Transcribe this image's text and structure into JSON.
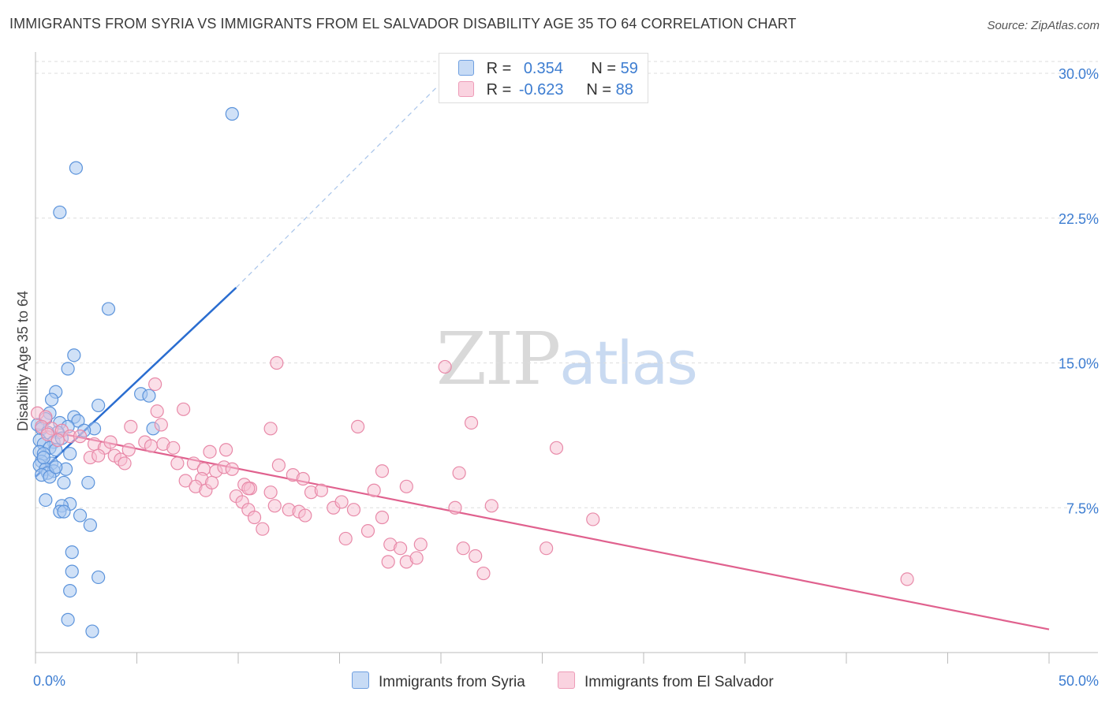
{
  "header": {
    "title": "IMMIGRANTS FROM SYRIA VS IMMIGRANTS FROM EL SALVADOR DISABILITY AGE 35 TO 64 CORRELATION CHART",
    "source": "Source: ZipAtlas.com"
  },
  "watermark": {
    "zip": "ZIP",
    "atlas": "atlas"
  },
  "legend": {
    "r_label": "R =",
    "n_label": "N =",
    "syria": {
      "r": "0.354",
      "n": "59"
    },
    "el_salvador": {
      "r": "-0.623",
      "n": "88"
    }
  },
  "bottom_legend": {
    "syria": "Immigrants from Syria",
    "el_salvador": "Immigrants from El Salvador"
  },
  "colors": {
    "syria_fill": "#a9c8f0",
    "syria_stroke": "#5b93db",
    "syria_line": "#2a6dd0",
    "el_salvador_fill": "#f7c0d2",
    "el_salvador_stroke": "#e889a8",
    "el_salvador_line": "#e0618e",
    "tick_text": "#3d7dd1",
    "grid": "#dddddd"
  },
  "chart_data": {
    "type": "scatter",
    "title": "IMMIGRANTS FROM SYRIA VS IMMIGRANTS FROM EL SALVADOR DISABILITY AGE 35 TO 64 CORRELATION CHART",
    "xlabel": "",
    "ylabel": "Disability Age 35 to 64",
    "xlim": [
      0,
      50
    ],
    "ylim": [
      0,
      30.9
    ],
    "x_tick_labels": {
      "left": "0.0%",
      "right": "50.0%"
    },
    "y_ticks": [
      {
        "value": 7.5,
        "label": "7.5%"
      },
      {
        "value": 15.0,
        "label": "15.0%"
      },
      {
        "value": 22.5,
        "label": "22.5%"
      },
      {
        "value": 30.0,
        "label": "30.0%"
      }
    ],
    "series": [
      {
        "name": "Immigrants from Syria",
        "r": 0.354,
        "n": 59,
        "points": [
          [
            9.7,
            27.9
          ],
          [
            2.0,
            25.1
          ],
          [
            1.2,
            22.8
          ],
          [
            3.6,
            17.8
          ],
          [
            1.9,
            15.4
          ],
          [
            1.6,
            14.7
          ],
          [
            1.0,
            13.5
          ],
          [
            5.2,
            13.4
          ],
          [
            5.6,
            13.3
          ],
          [
            0.8,
            13.1
          ],
          [
            3.1,
            12.8
          ],
          [
            0.7,
            12.4
          ],
          [
            1.9,
            12.2
          ],
          [
            0.5,
            12.1
          ],
          [
            1.2,
            11.9
          ],
          [
            2.1,
            12.0
          ],
          [
            0.1,
            11.8
          ],
          [
            1.6,
            11.7
          ],
          [
            2.9,
            11.6
          ],
          [
            0.3,
            11.6
          ],
          [
            5.8,
            11.6
          ],
          [
            2.4,
            11.5
          ],
          [
            1.1,
            11.4
          ],
          [
            0.6,
            11.4
          ],
          [
            0.2,
            11.0
          ],
          [
            0.9,
            10.9
          ],
          [
            1.3,
            11.1
          ],
          [
            0.4,
            10.8
          ],
          [
            0.7,
            10.6
          ],
          [
            1.0,
            10.5
          ],
          [
            0.2,
            10.4
          ],
          [
            0.4,
            10.3
          ],
          [
            1.7,
            10.3
          ],
          [
            0.3,
            9.9
          ],
          [
            0.8,
            9.8
          ],
          [
            0.2,
            9.7
          ],
          [
            0.5,
            9.5
          ],
          [
            1.5,
            9.5
          ],
          [
            0.9,
            9.4
          ],
          [
            0.6,
            9.3
          ],
          [
            0.3,
            9.2
          ],
          [
            0.7,
            9.1
          ],
          [
            2.6,
            8.8
          ],
          [
            1.4,
            8.8
          ],
          [
            0.5,
            7.9
          ],
          [
            1.7,
            7.7
          ],
          [
            1.3,
            7.6
          ],
          [
            1.2,
            7.3
          ],
          [
            1.4,
            7.3
          ],
          [
            2.2,
            7.1
          ],
          [
            2.7,
            6.6
          ],
          [
            1.8,
            5.2
          ],
          [
            1.8,
            4.2
          ],
          [
            3.1,
            3.9
          ],
          [
            1.7,
            3.2
          ],
          [
            1.6,
            1.7
          ],
          [
            2.8,
            1.1
          ],
          [
            0.4,
            10.1
          ],
          [
            1.0,
            9.6
          ]
        ],
        "trend": {
          "x0": 0.0,
          "y0": 9.1,
          "x1": 9.9,
          "y1": 18.9,
          "dash_to_x": 20.0,
          "dash_to_y": 29.5
        }
      },
      {
        "name": "Immigrants from El Salvador",
        "r": -0.623,
        "n": 88,
        "points": [
          [
            0.1,
            12.4
          ],
          [
            0.5,
            12.2
          ],
          [
            0.3,
            11.7
          ],
          [
            0.8,
            11.6
          ],
          [
            1.3,
            11.5
          ],
          [
            0.6,
            11.3
          ],
          [
            1.7,
            11.2
          ],
          [
            2.2,
            11.2
          ],
          [
            1.1,
            11.0
          ],
          [
            2.9,
            10.8
          ],
          [
            3.4,
            10.6
          ],
          [
            3.7,
            10.9
          ],
          [
            2.7,
            10.1
          ],
          [
            3.1,
            10.2
          ],
          [
            3.9,
            10.2
          ],
          [
            4.2,
            10.0
          ],
          [
            4.4,
            9.8
          ],
          [
            4.6,
            10.5
          ],
          [
            4.7,
            11.7
          ],
          [
            5.4,
            10.9
          ],
          [
            5.7,
            10.7
          ],
          [
            6.2,
            11.8
          ],
          [
            6.3,
            10.8
          ],
          [
            6.8,
            10.6
          ],
          [
            6.0,
            12.5
          ],
          [
            5.9,
            13.9
          ],
          [
            7.3,
            12.6
          ],
          [
            7.0,
            9.8
          ],
          [
            7.8,
            9.8
          ],
          [
            8.3,
            9.5
          ],
          [
            8.2,
            9.0
          ],
          [
            8.6,
            10.4
          ],
          [
            8.9,
            9.4
          ],
          [
            9.3,
            9.6
          ],
          [
            9.7,
            9.5
          ],
          [
            7.4,
            8.9
          ],
          [
            7.9,
            8.6
          ],
          [
            8.4,
            8.4
          ],
          [
            8.7,
            8.8
          ],
          [
            9.9,
            8.1
          ],
          [
            10.3,
            8.7
          ],
          [
            10.6,
            8.5
          ],
          [
            11.6,
            8.3
          ],
          [
            11.8,
            7.6
          ],
          [
            10.2,
            7.8
          ],
          [
            10.5,
            7.4
          ],
          [
            10.8,
            7.0
          ],
          [
            11.2,
            6.4
          ],
          [
            12.5,
            7.4
          ],
          [
            13.0,
            7.3
          ],
          [
            13.3,
            7.1
          ],
          [
            12.0,
            9.7
          ],
          [
            12.7,
            9.2
          ],
          [
            13.2,
            9.0
          ],
          [
            13.6,
            8.3
          ],
          [
            14.1,
            8.4
          ],
          [
            14.7,
            7.5
          ],
          [
            15.3,
            5.9
          ],
          [
            15.1,
            7.8
          ],
          [
            15.7,
            7.4
          ],
          [
            16.4,
            6.3
          ],
          [
            16.7,
            8.4
          ],
          [
            17.1,
            7.0
          ],
          [
            17.5,
            5.6
          ],
          [
            18.0,
            5.4
          ],
          [
            17.4,
            4.7
          ],
          [
            18.3,
            4.7
          ],
          [
            18.8,
            4.9
          ],
          [
            19.0,
            5.6
          ],
          [
            21.1,
            5.4
          ],
          [
            21.7,
            5.0
          ],
          [
            22.1,
            4.1
          ],
          [
            22.5,
            7.6
          ],
          [
            20.7,
            7.5
          ],
          [
            20.9,
            9.3
          ],
          [
            17.1,
            9.4
          ],
          [
            18.3,
            8.6
          ],
          [
            15.9,
            11.7
          ],
          [
            11.6,
            11.6
          ],
          [
            11.9,
            15.0
          ],
          [
            20.2,
            14.8
          ],
          [
            21.5,
            11.9
          ],
          [
            25.2,
            5.4
          ],
          [
            27.5,
            6.9
          ],
          [
            25.7,
            10.6
          ],
          [
            10.5,
            8.5
          ],
          [
            43.0,
            3.8
          ],
          [
            9.4,
            10.5
          ]
        ],
        "trend": {
          "x0": 0.0,
          "y0": 11.6,
          "x1": 50.0,
          "y1": 1.2
        }
      }
    ]
  }
}
